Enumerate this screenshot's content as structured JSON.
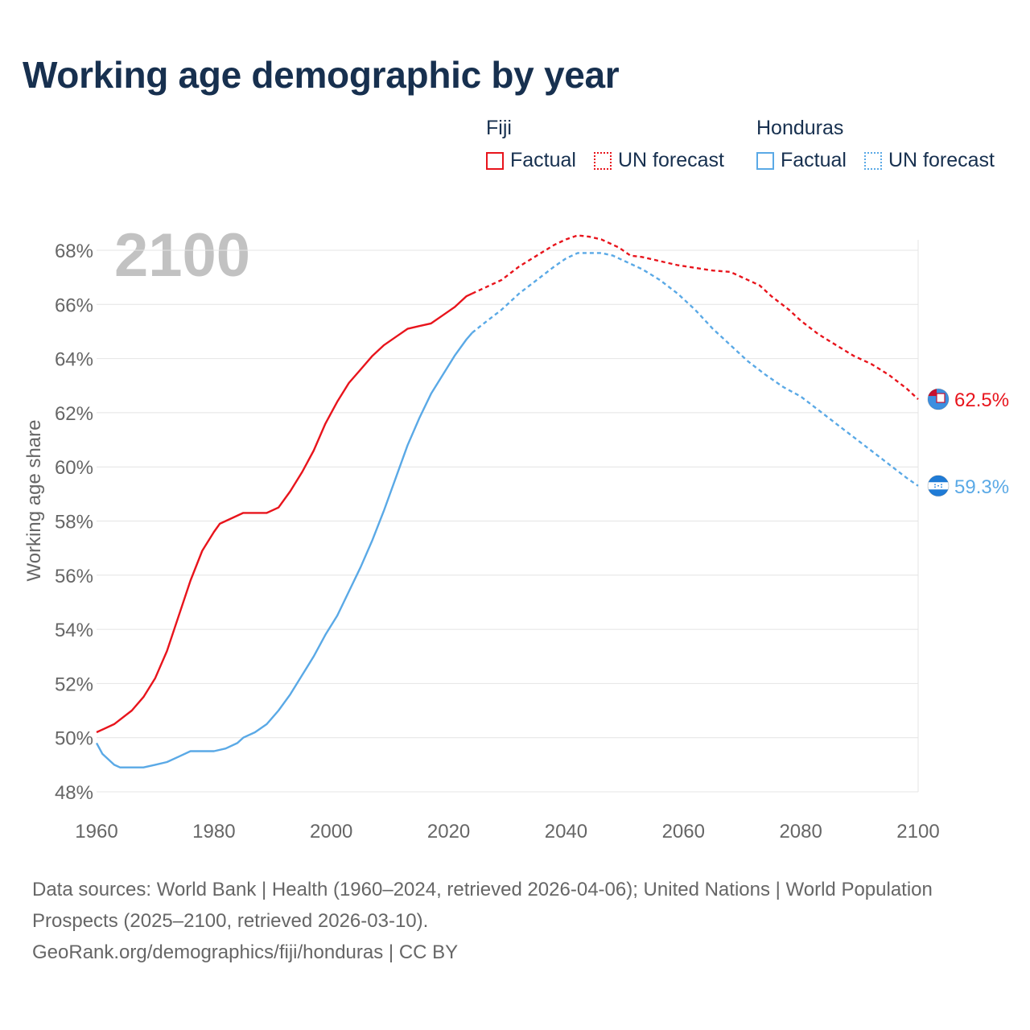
{
  "title": "Working age demographic by year",
  "year_watermark": "2100",
  "legend": {
    "groups": [
      {
        "country": "Fiji",
        "color": "#e8141c",
        "factual_label": "Factual",
        "forecast_label": "UN forecast"
      },
      {
        "country": "Honduras",
        "color": "#5aa9e6",
        "factual_label": "Factual",
        "forecast_label": "UN forecast"
      }
    ]
  },
  "source": {
    "line1": "Data sources: World Bank | Health (1960–2024, retrieved 2026-04-06); United Nations | World Population Prospects (2025–2100, retrieved 2026-03-10).",
    "line2": "GeoRank.org/demographics/fiji/honduras | CC BY"
  },
  "chart_data": {
    "type": "line",
    "ylabel": "Working age share",
    "xlabel": "",
    "xlim": [
      1960,
      2100
    ],
    "ylim": [
      48,
      69
    ],
    "x_ticks": [
      1960,
      1980,
      2000,
      2020,
      2040,
      2060,
      2080,
      2100
    ],
    "y_ticks": [
      48,
      50,
      52,
      54,
      56,
      58,
      60,
      62,
      64,
      66,
      68
    ],
    "y_tick_labels": [
      "48%",
      "50%",
      "52%",
      "54%",
      "56%",
      "58%",
      "60%",
      "62%",
      "64%",
      "66%",
      "68%"
    ],
    "grid": true,
    "factual_range": [
      1960,
      2024
    ],
    "forecast_range": [
      2025,
      2100
    ],
    "series": [
      {
        "name": "Fiji",
        "color": "#e8141c",
        "end_label": "62.5%",
        "flag_icon": "fiji-flag-icon",
        "points": [
          [
            1960,
            50.2
          ],
          [
            1963,
            50.5
          ],
          [
            1966,
            51.0
          ],
          [
            1968,
            51.5
          ],
          [
            1970,
            52.2
          ],
          [
            1972,
            53.2
          ],
          [
            1974,
            54.5
          ],
          [
            1976,
            55.8
          ],
          [
            1978,
            56.9
          ],
          [
            1980,
            57.6
          ],
          [
            1981,
            57.9
          ],
          [
            1983,
            58.1
          ],
          [
            1985,
            58.3
          ],
          [
            1989,
            58.3
          ],
          [
            1991,
            58.5
          ],
          [
            1993,
            59.1
          ],
          [
            1995,
            59.8
          ],
          [
            1997,
            60.6
          ],
          [
            1999,
            61.6
          ],
          [
            2001,
            62.4
          ],
          [
            2003,
            63.1
          ],
          [
            2005,
            63.6
          ],
          [
            2007,
            64.1
          ],
          [
            2009,
            64.5
          ],
          [
            2011,
            64.8
          ],
          [
            2013,
            65.1
          ],
          [
            2015,
            65.2
          ],
          [
            2017,
            65.3
          ],
          [
            2019,
            65.6
          ],
          [
            2021,
            65.9
          ],
          [
            2023,
            66.3
          ],
          [
            2024,
            66.4
          ],
          [
            2026,
            66.6
          ],
          [
            2029,
            66.9
          ],
          [
            2032,
            67.4
          ],
          [
            2035,
            67.8
          ],
          [
            2038,
            68.2
          ],
          [
            2040,
            68.4
          ],
          [
            2042,
            68.55
          ],
          [
            2044,
            68.5
          ],
          [
            2046,
            68.4
          ],
          [
            2049,
            68.1
          ],
          [
            2051,
            67.8
          ],
          [
            2053,
            67.75
          ],
          [
            2056,
            67.6
          ],
          [
            2059,
            67.45
          ],
          [
            2062,
            67.35
          ],
          [
            2065,
            67.25
          ],
          [
            2068,
            67.2
          ],
          [
            2070,
            67.0
          ],
          [
            2073,
            66.7
          ],
          [
            2075,
            66.3
          ],
          [
            2078,
            65.8
          ],
          [
            2080,
            65.4
          ],
          [
            2083,
            64.9
          ],
          [
            2086,
            64.5
          ],
          [
            2089,
            64.1
          ],
          [
            2092,
            63.8
          ],
          [
            2095,
            63.4
          ],
          [
            2098,
            62.9
          ],
          [
            2100,
            62.5
          ]
        ]
      },
      {
        "name": "Honduras",
        "color": "#5aa9e6",
        "end_label": "59.3%",
        "flag_icon": "honduras-flag-icon",
        "points": [
          [
            1960,
            49.8
          ],
          [
            1961,
            49.4
          ],
          [
            1962,
            49.2
          ],
          [
            1963,
            49.0
          ],
          [
            1964,
            48.9
          ],
          [
            1968,
            48.9
          ],
          [
            1970,
            49.0
          ],
          [
            1972,
            49.1
          ],
          [
            1974,
            49.3
          ],
          [
            1976,
            49.5
          ],
          [
            1980,
            49.5
          ],
          [
            1982,
            49.6
          ],
          [
            1984,
            49.8
          ],
          [
            1985,
            50.0
          ],
          [
            1987,
            50.2
          ],
          [
            1989,
            50.5
          ],
          [
            1991,
            51.0
          ],
          [
            1993,
            51.6
          ],
          [
            1995,
            52.3
          ],
          [
            1997,
            53.0
          ],
          [
            1999,
            53.8
          ],
          [
            2001,
            54.5
          ],
          [
            2003,
            55.4
          ],
          [
            2005,
            56.3
          ],
          [
            2007,
            57.3
          ],
          [
            2009,
            58.4
          ],
          [
            2011,
            59.6
          ],
          [
            2013,
            60.8
          ],
          [
            2015,
            61.8
          ],
          [
            2017,
            62.7
          ],
          [
            2019,
            63.4
          ],
          [
            2021,
            64.1
          ],
          [
            2023,
            64.7
          ],
          [
            2024,
            64.95
          ],
          [
            2026,
            65.3
          ],
          [
            2029,
            65.8
          ],
          [
            2032,
            66.4
          ],
          [
            2035,
            66.9
          ],
          [
            2038,
            67.4
          ],
          [
            2040,
            67.7
          ],
          [
            2042,
            67.9
          ],
          [
            2046,
            67.9
          ],
          [
            2048,
            67.8
          ],
          [
            2050,
            67.6
          ],
          [
            2053,
            67.3
          ],
          [
            2056,
            66.9
          ],
          [
            2059,
            66.4
          ],
          [
            2062,
            65.8
          ],
          [
            2065,
            65.1
          ],
          [
            2068,
            64.5
          ],
          [
            2071,
            63.9
          ],
          [
            2074,
            63.4
          ],
          [
            2077,
            62.95
          ],
          [
            2080,
            62.6
          ],
          [
            2083,
            62.1
          ],
          [
            2086,
            61.6
          ],
          [
            2089,
            61.1
          ],
          [
            2092,
            60.6
          ],
          [
            2095,
            60.1
          ],
          [
            2098,
            59.6
          ],
          [
            2100,
            59.3
          ]
        ]
      }
    ]
  }
}
